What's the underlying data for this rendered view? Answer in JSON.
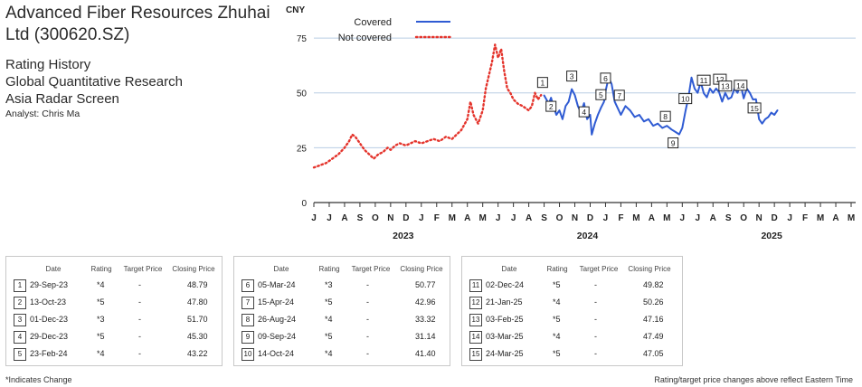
{
  "header": {
    "title": "Advanced Fiber Resources Zhuhai Ltd (300620.SZ)",
    "subtitle1": "Rating History",
    "subtitle2": "Global Quantitative Research",
    "subtitle3": "Asia Radar Screen",
    "analyst": "Analyst: Chris Ma"
  },
  "chart_data": {
    "type": "line",
    "ylabel": "CNY",
    "ylim": [
      0,
      87
    ],
    "yticks": [
      0,
      25,
      50,
      75
    ],
    "grid": true,
    "legend": {
      "position": "top-left",
      "entries": [
        {
          "name": "Covered",
          "style": "solid",
          "color": "#2f5bd3"
        },
        {
          "name": "Not covered",
          "style": "dotted",
          "color": "#e4342c"
        }
      ]
    },
    "month_labels": [
      "J",
      "J",
      "A",
      "S",
      "O",
      "N",
      "D",
      "J",
      "F",
      "M",
      "A",
      "M",
      "J",
      "J",
      "A",
      "S",
      "O",
      "N",
      "D",
      "J",
      "F",
      "M",
      "A",
      "M",
      "J",
      "J",
      "A",
      "S",
      "O",
      "N",
      "D",
      "J",
      "F",
      "M",
      "A",
      "M"
    ],
    "year_labels": [
      {
        "label": "2023",
        "month_index": 6
      },
      {
        "label": "2024",
        "month_index": 18
      },
      {
        "label": "2025",
        "month_index": 30
      }
    ],
    "series": [
      {
        "name": "Not covered",
        "points": [
          [
            0,
            16
          ],
          [
            0.4,
            17
          ],
          [
            0.8,
            18
          ],
          [
            1.2,
            20
          ],
          [
            1.6,
            22
          ],
          [
            2,
            25
          ],
          [
            2.3,
            28
          ],
          [
            2.5,
            31
          ],
          [
            2.7,
            30
          ],
          [
            3,
            27
          ],
          [
            3.3,
            24
          ],
          [
            3.6,
            22
          ],
          [
            3.9,
            20
          ],
          [
            4.2,
            22
          ],
          [
            4.5,
            23
          ],
          [
            4.8,
            25
          ],
          [
            5,
            24
          ],
          [
            5.3,
            26
          ],
          [
            5.6,
            27
          ],
          [
            6,
            26
          ],
          [
            6.3,
            27
          ],
          [
            6.6,
            28
          ],
          [
            7,
            27
          ],
          [
            7.4,
            28
          ],
          [
            7.8,
            29
          ],
          [
            8.2,
            28
          ],
          [
            8.6,
            30
          ],
          [
            9,
            29
          ],
          [
            9.3,
            31
          ],
          [
            9.6,
            33
          ],
          [
            10,
            38
          ],
          [
            10.2,
            46
          ],
          [
            10.4,
            40
          ],
          [
            10.7,
            36
          ],
          [
            11,
            42
          ],
          [
            11.2,
            52
          ],
          [
            11.4,
            58
          ],
          [
            11.6,
            64
          ],
          [
            11.8,
            72
          ],
          [
            12,
            66
          ],
          [
            12.2,
            70
          ],
          [
            12.4,
            60
          ],
          [
            12.6,
            52
          ],
          [
            12.8,
            50
          ],
          [
            13,
            47
          ],
          [
            13.3,
            45
          ],
          [
            13.6,
            44
          ],
          [
            14,
            42
          ],
          [
            14.2,
            44
          ],
          [
            14.4,
            50
          ],
          [
            14.6,
            47
          ],
          [
            14.8,
            49
          ]
        ]
      },
      {
        "name": "Covered",
        "points": [
          [
            15.0,
            48.8
          ],
          [
            15.15,
            47
          ],
          [
            15.3,
            45
          ],
          [
            15.45,
            47.8
          ],
          [
            15.6,
            44
          ],
          [
            15.8,
            40
          ],
          [
            16.0,
            42
          ],
          [
            16.2,
            38
          ],
          [
            16.4,
            44
          ],
          [
            16.6,
            46
          ],
          [
            16.8,
            51.7
          ],
          [
            17.0,
            49
          ],
          [
            17.2,
            44
          ],
          [
            17.4,
            41
          ],
          [
            17.6,
            45.3
          ],
          [
            17.8,
            38
          ],
          [
            18.0,
            40
          ],
          [
            18.1,
            31
          ],
          [
            18.3,
            36
          ],
          [
            18.5,
            40
          ],
          [
            18.7,
            43.2
          ],
          [
            18.9,
            46
          ],
          [
            19.0,
            50.8
          ],
          [
            19.2,
            57
          ],
          [
            19.4,
            54
          ],
          [
            19.6,
            46
          ],
          [
            19.8,
            43
          ],
          [
            20.0,
            40
          ],
          [
            20.3,
            44
          ],
          [
            20.6,
            42
          ],
          [
            20.9,
            39
          ],
          [
            21.2,
            40
          ],
          [
            21.5,
            37
          ],
          [
            21.8,
            38
          ],
          [
            22.1,
            35
          ],
          [
            22.4,
            36
          ],
          [
            22.7,
            34
          ],
          [
            23.0,
            35
          ],
          [
            23.3,
            33.3
          ],
          [
            23.6,
            32
          ],
          [
            23.8,
            31.1
          ],
          [
            24.0,
            34
          ],
          [
            24.2,
            41.4
          ],
          [
            24.4,
            48
          ],
          [
            24.6,
            57
          ],
          [
            24.8,
            52
          ],
          [
            25.0,
            50
          ],
          [
            25.2,
            55
          ],
          [
            25.4,
            49.8
          ],
          [
            25.6,
            48
          ],
          [
            25.8,
            52
          ],
          [
            26.0,
            50
          ],
          [
            26.2,
            52
          ],
          [
            26.4,
            50.3
          ],
          [
            26.6,
            46
          ],
          [
            26.8,
            50
          ],
          [
            27.0,
            47.2
          ],
          [
            27.2,
            48
          ],
          [
            27.4,
            52
          ],
          [
            27.6,
            50
          ],
          [
            27.8,
            54
          ],
          [
            28.0,
            47.5
          ],
          [
            28.2,
            52
          ],
          [
            28.4,
            50
          ],
          [
            28.6,
            47
          ],
          [
            28.8,
            47.1
          ],
          [
            29.0,
            38
          ],
          [
            29.2,
            36
          ],
          [
            29.4,
            38
          ],
          [
            29.6,
            39
          ],
          [
            29.8,
            41
          ],
          [
            30.0,
            40
          ],
          [
            30.2,
            42
          ]
        ]
      }
    ],
    "annotations": [
      {
        "id": 1,
        "x": 14.9,
        "y": 48.79,
        "label_side": "above"
      },
      {
        "id": 2,
        "x": 15.45,
        "y": 47.8,
        "label_side": "below"
      },
      {
        "id": 3,
        "x": 16.8,
        "y": 51.7,
        "label_side": "above"
      },
      {
        "id": 4,
        "x": 17.6,
        "y": 45.3,
        "label_side": "below"
      },
      {
        "id": 5,
        "x": 18.7,
        "y": 43.22,
        "label_side": "above"
      },
      {
        "id": 6,
        "x": 19.0,
        "y": 50.77,
        "label_side": "above"
      },
      {
        "id": 7,
        "x": 19.9,
        "y": 42.96,
        "label_side": "above"
      },
      {
        "id": 8,
        "x": 22.9,
        "y": 33.32,
        "label_side": "above"
      },
      {
        "id": 9,
        "x": 23.4,
        "y": 31.14,
        "label_side": "below"
      },
      {
        "id": 10,
        "x": 24.2,
        "y": 41.4,
        "label_side": "above"
      },
      {
        "id": 11,
        "x": 25.4,
        "y": 49.82,
        "label_side": "above"
      },
      {
        "id": 12,
        "x": 26.45,
        "y": 50.26,
        "label_side": "above"
      },
      {
        "id": 13,
        "x": 26.8,
        "y": 47.16,
        "label_side": "above"
      },
      {
        "id": 14,
        "x": 27.8,
        "y": 47.49,
        "label_side": "above"
      },
      {
        "id": 15,
        "x": 28.7,
        "y": 47.05,
        "label_side": "below"
      }
    ]
  },
  "table": {
    "headers": {
      "date": "Date",
      "rating": "Rating",
      "target": "Target Price",
      "close": "Closing Price"
    },
    "groups": [
      [
        {
          "num": "1",
          "date": "29-Sep-23",
          "rating": "*4",
          "target": "-",
          "close": "48.79"
        },
        {
          "num": "2",
          "date": "13-Oct-23",
          "rating": "*5",
          "target": "-",
          "close": "47.80"
        },
        {
          "num": "3",
          "date": "01-Dec-23",
          "rating": "*3",
          "target": "-",
          "close": "51.70"
        },
        {
          "num": "4",
          "date": "29-Dec-23",
          "rating": "*5",
          "target": "-",
          "close": "45.30"
        },
        {
          "num": "5",
          "date": "23-Feb-24",
          "rating": "*4",
          "target": "-",
          "close": "43.22"
        }
      ],
      [
        {
          "num": "6",
          "date": "05-Mar-24",
          "rating": "*3",
          "target": "-",
          "close": "50.77"
        },
        {
          "num": "7",
          "date": "15-Apr-24",
          "rating": "*5",
          "target": "-",
          "close": "42.96"
        },
        {
          "num": "8",
          "date": "26-Aug-24",
          "rating": "*4",
          "target": "-",
          "close": "33.32"
        },
        {
          "num": "9",
          "date": "09-Sep-24",
          "rating": "*5",
          "target": "-",
          "close": "31.14"
        },
        {
          "num": "10",
          "date": "14-Oct-24",
          "rating": "*4",
          "target": "-",
          "close": "41.40"
        }
      ],
      [
        {
          "num": "11",
          "date": "02-Dec-24",
          "rating": "*5",
          "target": "-",
          "close": "49.82"
        },
        {
          "num": "12",
          "date": "21-Jan-25",
          "rating": "*4",
          "target": "-",
          "close": "50.26"
        },
        {
          "num": "13",
          "date": "03-Feb-25",
          "rating": "*5",
          "target": "-",
          "close": "47.16"
        },
        {
          "num": "14",
          "date": "03-Mar-25",
          "rating": "*4",
          "target": "-",
          "close": "47.49"
        },
        {
          "num": "15",
          "date": "24-Mar-25",
          "rating": "*5",
          "target": "-",
          "close": "47.05"
        }
      ]
    ]
  },
  "footer": {
    "left": "*Indicates Change",
    "right": "Rating/target price changes above reflect Eastern Time"
  }
}
